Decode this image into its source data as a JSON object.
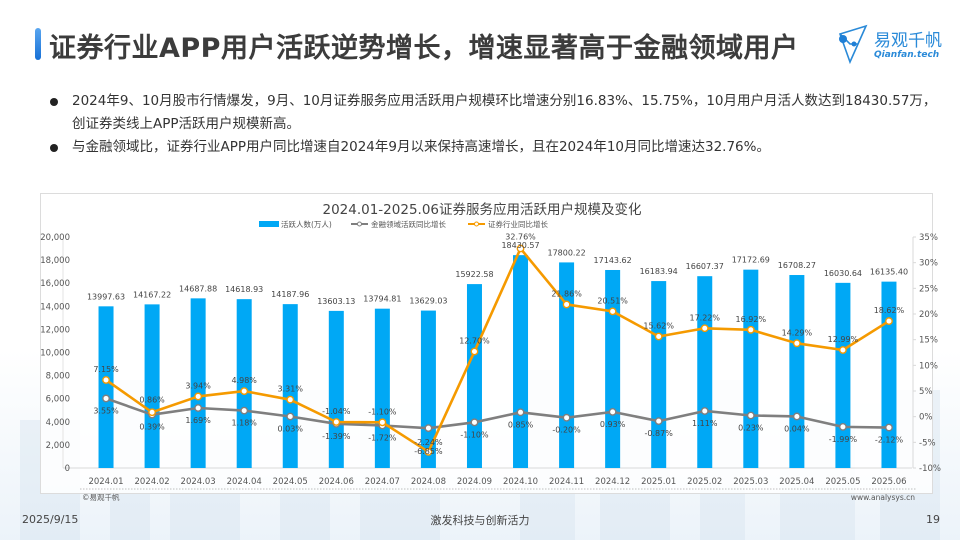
{
  "header": {
    "title": "证券行业APP用户活跃逆势增长，增速显著高于金融领域用户",
    "logo_cn": "易观千帆",
    "logo_en": "Qianfan.tech"
  },
  "bullets": [
    "2024年9、10月股市行情爆发，9月、10月证券服务应用活跃用户规模环比增速分别16.83%、15.75%，10月用户月活人数达到18430.57万，创证券类线上APP活跃用户规模新高。",
    "与金融领域比，证券行业APP用户同比增速自2024年9月以来保持高速增长，且在2024年10月同比增速达32.76%。"
  ],
  "footer": {
    "date": "2025/9/15",
    "slogan": "激发科技与创新活力",
    "page": "19"
  },
  "colors": {
    "bar": "#00a8f5",
    "finance_line": "#7f7f7f",
    "securities_line": "#f59a00"
  },
  "chart_data": {
    "type": "bar",
    "title": "2024.01-2025.06证券服务应用活跃用户规模及变化",
    "categories": [
      "2024.01",
      "2024.02",
      "2024.03",
      "2024.04",
      "2024.05",
      "2024.06",
      "2024.07",
      "2024.08",
      "2024.09",
      "2024.10",
      "2024.11",
      "2024.12",
      "2025.01",
      "2025.02",
      "2025.03",
      "2025.04",
      "2025.05",
      "2025.06"
    ],
    "series": [
      {
        "name": "活跃人数(万人)",
        "type": "bar",
        "axis": "left",
        "values": [
          13997.63,
          14167.22,
          14687.88,
          14618.93,
          14187.96,
          13603.13,
          13794.81,
          13629.03,
          15922.58,
          18430.57,
          17800.22,
          17143.62,
          16183.94,
          16607.37,
          17172.69,
          16708.27,
          16030.64,
          16135.4
        ],
        "labels": [
          "13997.63",
          "14167.22",
          "14687.88",
          "14618.93",
          "14187.96",
          "13603.13",
          "13794.81",
          "13629.03",
          "15922.58",
          "18430.57",
          "17800.22",
          "17143.62",
          "16183.94",
          "16607.37",
          "17172.69",
          "16708.27",
          "16030.64",
          "16135.40"
        ]
      },
      {
        "name": "金融领域活跃同比增长",
        "type": "line",
        "axis": "right",
        "values": [
          3.55,
          0.39,
          1.69,
          1.18,
          0.03,
          -1.39,
          -1.72,
          -2.24,
          -1.1,
          0.85,
          -0.2,
          0.93,
          -0.87,
          1.11,
          0.23,
          0.04,
          -1.99,
          -2.12
        ],
        "labels": [
          "3.55%",
          "0.39%",
          "1.69%",
          "1.18%",
          "0.03%",
          "-1.39%",
          "-1.72%",
          "-2.24%",
          "-1.10%",
          "0.85%",
          "-0.20%",
          "0.93%",
          "-0.87%",
          "1.11%",
          "0.23%",
          "0.04%",
          "-1.99%",
          "-2.12%"
        ]
      },
      {
        "name": "证券行业同比增长",
        "type": "line",
        "axis": "right",
        "values": [
          7.15,
          0.86,
          3.94,
          4.98,
          3.31,
          -1.04,
          -1.1,
          -6.85,
          12.7,
          32.76,
          21.86,
          20.51,
          15.62,
          17.22,
          16.92,
          14.29,
          12.99,
          18.62
        ],
        "labels": [
          "7.15%",
          "0.86%",
          "3.94%",
          "4.98%",
          "3.31%",
          "-1.04%",
          "-1.10%",
          "-6.85%",
          "12.70%",
          "32.76%",
          "21.86%",
          "20.51%",
          "15.62%",
          "17.22%",
          "16.92%",
          "14.29%",
          "12.99%",
          "18.62%"
        ]
      }
    ],
    "y_left": {
      "min": 0,
      "max": 20000,
      "ticks": [
        "0",
        "2,000",
        "4,000",
        "6,000",
        "8,000",
        "10,000",
        "12,000",
        "14,000",
        "16,000",
        "18,000",
        "20,000"
      ]
    },
    "y_right": {
      "min": -10,
      "max": 35,
      "ticks": [
        "-10%",
        "-5%",
        "0%",
        "5%",
        "10%",
        "15%",
        "20%",
        "25%",
        "30%",
        "35%"
      ]
    },
    "legend_position": "top",
    "grid": false,
    "source_left": "©易观千帆",
    "source_right": "www.analysys.cn"
  }
}
